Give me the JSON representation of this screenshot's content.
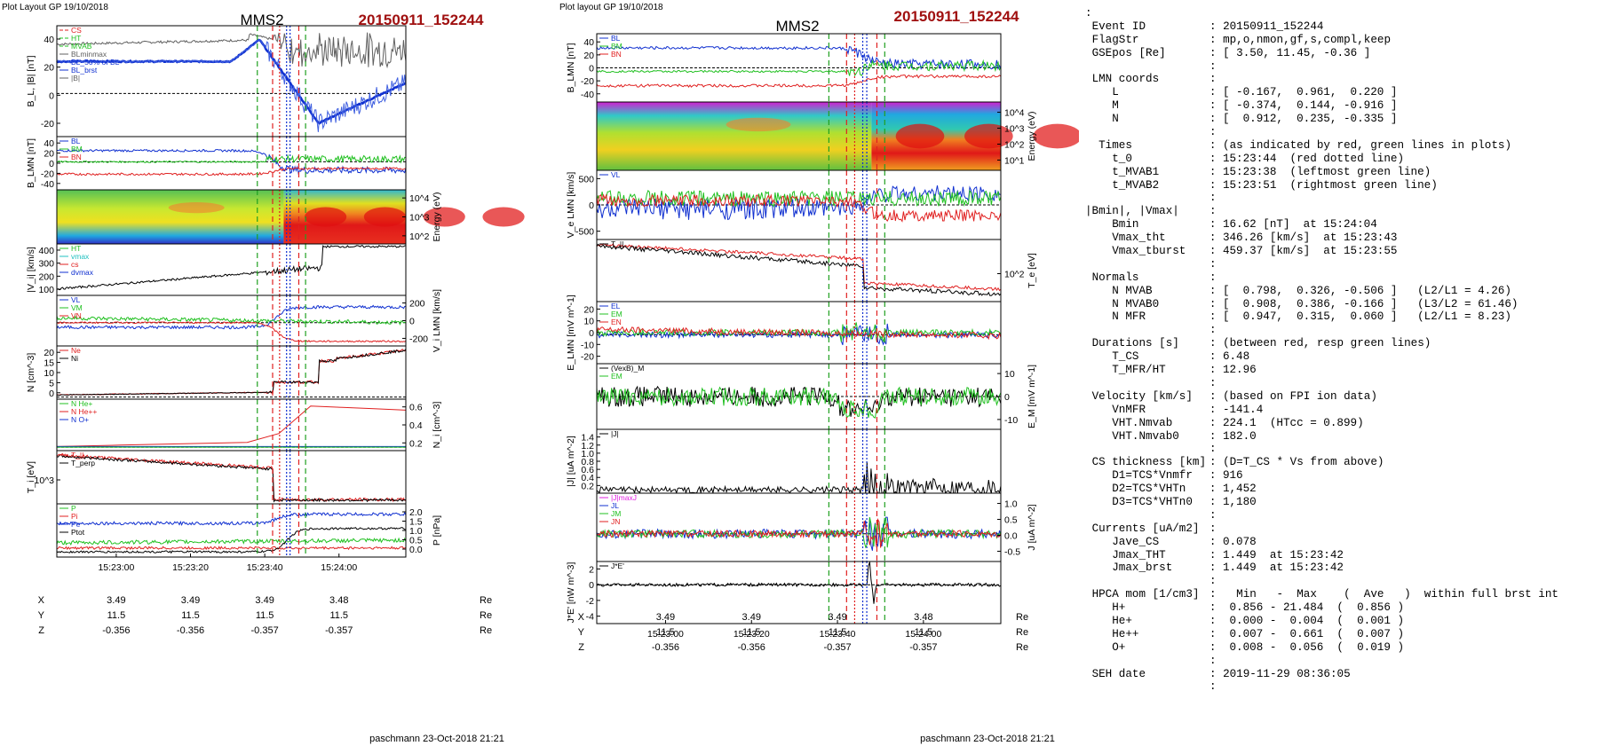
{
  "left_header": {
    "layout_label": "Plot Layout GP 19/10/2018",
    "spacecraft": "MMS2",
    "event": "20150911_152244"
  },
  "mid_header": {
    "layout_label": "Plot layout GP 19/10/2018",
    "spacecraft": "MMS2",
    "event": "20150911_152244"
  },
  "footer_left": "paschmann 23-Oct-2018 21:21",
  "footer_mid": "paschmann 23-Oct-2018 21:21",
  "colors": {
    "title_red": "#a01010",
    "bl": "#1030d0",
    "bm": "#20c020",
    "bn": "#e02020",
    "total": "#606060",
    "black": "#000000"
  },
  "chart_data": [
    {
      "type": "line",
      "id": "left-panels",
      "x_ticks": [
        "15:23:00",
        "15:23:20",
        "15:23:40",
        "15:24:00"
      ],
      "event_lines": {
        "red_dotted": "15:23:44",
        "green_left": "15:23:38",
        "green_right": "15:23:51"
      },
      "panels": [
        {
          "ylabel": "B_L, |B| [nT]",
          "ylim": [
            -35,
            55
          ],
          "yticks": [
            "40",
            "20",
            "0",
            "-20"
          ],
          "yticks_right": [],
          "ylabel_right": "",
          "legend": [
            "CS",
            "HT",
            "MVAB",
            "BLminmax",
            "BL_50% of BL",
            "BL_brst",
            "|B|"
          ],
          "legend_colors": [
            "#e02020",
            "#20c020",
            "#20c020",
            "#606060",
            "#1030d0",
            "#1030d0",
            "#606060"
          ],
          "legend_dashes": [
            "4,2",
            "4,2",
            "4,2",
            "",
            "3,2",
            "",
            ""
          ]
        },
        {
          "ylabel": "B_LMN [nT]",
          "ylim": [
            -50,
            45
          ],
          "yticks": [
            "40",
            "20",
            "0",
            "-20",
            "-40"
          ],
          "yticks_right": [],
          "ylabel_right": "",
          "legend": [
            "BL",
            "BM",
            "BN"
          ],
          "legend_colors": [
            "#1030d0",
            "#20c020",
            "#e02020"
          ],
          "legend_dashes": [
            "",
            "",
            ""
          ]
        },
        {
          "ylabel": "",
          "ylim": [
            0,
            1
          ],
          "yticks": [],
          "yticks_right": [
            "10^4",
            "10^3",
            "10^2"
          ],
          "ylabel_right": "Energy (eV)",
          "legend": [],
          "legend_colors": [],
          "legend_dashes": []
        },
        {
          "ylabel": "|V_i| [km/s]",
          "ylim": [
            60,
            460
          ],
          "yticks": [
            "400",
            "300",
            "200",
            "100"
          ],
          "yticks_right": [],
          "ylabel_right": "",
          "legend": [
            "HT",
            "vmax",
            "cs",
            "dvmax"
          ],
          "legend_colors": [
            "#20c020",
            "#20c0c0",
            "#e02020",
            "#1030d0"
          ],
          "legend_dashes": [
            "",
            "",
            "",
            ""
          ]
        },
        {
          "ylabel": "",
          "ylim": [
            -300,
            350
          ],
          "yticks": [],
          "yticks_right": [
            "200",
            "0",
            "-200"
          ],
          "ylabel_right": "V_i LMN [km/s]",
          "legend": [
            "VL",
            "VM",
            "VN"
          ],
          "legend_colors": [
            "#1030d0",
            "#20c020",
            "#e02020"
          ],
          "legend_dashes": [
            "",
            "",
            ""
          ]
        },
        {
          "ylabel": "N [cm^-3]",
          "ylim": [
            -1,
            24
          ],
          "yticks": [
            "20",
            "15",
            "10",
            "5",
            "0"
          ],
          "yticks_right": [],
          "ylabel_right": "",
          "legend": [
            "Ne",
            "Ni"
          ],
          "legend_colors": [
            "#e02020",
            "#000000"
          ],
          "legend_dashes": [
            "",
            ""
          ]
        },
        {
          "ylabel": "",
          "ylim": [
            -0.05,
            0.7
          ],
          "yticks": [],
          "yticks_right": [
            "0.6",
            "0.4",
            "0.2"
          ],
          "ylabel_right": "N_i [cm^-3]",
          "legend": [
            "N He+",
            "N He++",
            "N O+"
          ],
          "legend_colors": [
            "#20c020",
            "#e02020",
            "#1030d0"
          ],
          "legend_dashes": [
            "",
            "",
            ""
          ]
        },
        {
          "ylabel": "T_i [eV]",
          "ylim": [
            0,
            1
          ],
          "yticks": [
            "10^3"
          ],
          "yticks_right": [],
          "ylabel_right": "",
          "legend": [
            "T_||",
            "T_perp"
          ],
          "legend_colors": [
            "#e02020",
            "#000000"
          ],
          "legend_dashes": [
            "",
            ""
          ]
        },
        {
          "ylabel": "",
          "ylim": [
            0,
            2.05
          ],
          "yticks": [],
          "yticks_right": [
            "2.0",
            "1.5",
            "1.0",
            "0.5",
            "0.0"
          ],
          "ylabel_right": "P [nPa]",
          "legend": [
            "P",
            "Pi",
            "Pe",
            "Ptot"
          ],
          "legend_colors": [
            "#20c020",
            "#e02020",
            "#1030d0",
            "#000000"
          ],
          "legend_dashes": [
            "",
            "",
            "",
            ""
          ]
        }
      ]
    },
    {
      "type": "line",
      "id": "mid-panels",
      "x_ticks": [
        "15:23:00",
        "15:23:20",
        "15:23:40",
        "15:24:00"
      ],
      "panels": [
        {
          "ylabel": "B_LMN [nT]",
          "ylim": [
            -48,
            48
          ],
          "yticks": [
            "40",
            "20",
            "0",
            "-20",
            "-40"
          ],
          "yticks_right": [],
          "ylabel_right": "",
          "legend": [
            "BL",
            "BM",
            "BN"
          ],
          "legend_colors": [
            "#1030d0",
            "#20c020",
            "#e02020"
          ],
          "legend_dashes": [
            "",
            "",
            ""
          ]
        },
        {
          "ylabel": "",
          "ylim": [
            0,
            1
          ],
          "yticks": [],
          "yticks_right": [
            "10^4",
            "10^3",
            "10^2",
            "10^1"
          ],
          "ylabel_right": "Energy (eV)",
          "legend": [],
          "legend_colors": [],
          "legend_dashes": []
        },
        {
          "ylabel": "V_e LMN [km/s]",
          "ylim": [
            -650,
            650
          ],
          "yticks": [
            "500",
            "0",
            "-500"
          ],
          "yticks_right": [],
          "ylabel_right": "",
          "legend": [
            "VL"
          ],
          "legend_colors": [
            "#1030d0"
          ],
          "legend_dashes": [
            ""
          ]
        },
        {
          "ylabel": "",
          "ylim": [
            0,
            1
          ],
          "yticks": [],
          "yticks_right": [
            "10^2"
          ],
          "ylabel_right": "T_e [eV]",
          "legend": [
            "T_||"
          ],
          "legend_colors": [
            "#000000"
          ],
          "legend_dashes": [
            ""
          ]
        },
        {
          "ylabel": "E_LMN [mV m^-1]",
          "ylim": [
            -28,
            32
          ],
          "yticks": [
            "20",
            "10",
            "0",
            "-10",
            "-20"
          ],
          "yticks_right": [],
          "ylabel_right": "",
          "legend": [
            "EL",
            "EM",
            "EN"
          ],
          "legend_colors": [
            "#1030d0",
            "#20c020",
            "#e02020"
          ],
          "legend_dashes": [
            "",
            "",
            ""
          ]
        },
        {
          "ylabel": "",
          "ylim": [
            -16,
            16
          ],
          "yticks": [],
          "yticks_right": [
            "10",
            "0",
            "-10"
          ],
          "ylabel_right": "E_M [mV m^-1]",
          "legend": [
            "(VexB)_M",
            "EM"
          ],
          "legend_colors": [
            "#000000",
            "#20c020"
          ],
          "legend_dashes": [
            "",
            ""
          ]
        },
        {
          "ylabel": "|J| [uA m^-2]",
          "ylim": [
            0,
            1.5
          ],
          "yticks": [
            "1.4",
            "1.2",
            "1.0",
            "0.8",
            "0.6",
            "0.4",
            "0.2"
          ],
          "yticks_right": [],
          "ylabel_right": "",
          "legend": [
            "|J|"
          ],
          "legend_colors": [
            "#000000"
          ],
          "legend_dashes": [
            ""
          ]
        },
        {
          "ylabel": "",
          "ylim": [
            -0.75,
            1.1
          ],
          "yticks": [],
          "yticks_right": [
            "1.0",
            "0.5",
            "0.0",
            "-0.5"
          ],
          "ylabel_right": "J [uA m^-2]",
          "legend": [
            "|J|maxJ",
            "JL",
            "JM",
            "JN"
          ],
          "legend_colors": [
            "#e020e0",
            "#1030d0",
            "#20c020",
            "#e02020"
          ],
          "legend_dashes": [
            "",
            "",
            "",
            ""
          ]
        },
        {
          "ylabel": "J*E' [nW m^-3]",
          "ylim": [
            -5,
            3
          ],
          "yticks": [
            "2",
            "0",
            "-2",
            "-4"
          ],
          "yticks_right": [],
          "ylabel_right": "",
          "legend": [
            "J*E'"
          ],
          "legend_colors": [
            "#000000"
          ],
          "legend_dashes": [
            ""
          ]
        }
      ]
    }
  ],
  "position_table": [
    {
      "label": "X",
      "values": [
        "3.49",
        "3.49",
        "3.49",
        "3.48"
      ],
      "unit": "Re"
    },
    {
      "label": "Y",
      "values": [
        "11.5",
        "11.5",
        "11.5",
        "11.5"
      ],
      "unit": "Re"
    },
    {
      "label": "Z",
      "values": [
        "-0.356",
        "-0.356",
        "-0.357",
        "-0.357"
      ],
      "unit": "Re"
    }
  ],
  "info_lines": [
    [
      ":",
      " ",
      ""
    ],
    [
      " ",
      "Event ID",
      ": 20150911_152244"
    ],
    [
      " ",
      "FlagStr",
      ": mp,o,nmon,gf,s,compl,keep"
    ],
    [
      " ",
      "GSEpos [Re]",
      ": [ 3.50, 11.45, -0.36 ]"
    ],
    [
      " ",
      "",
      ":"
    ],
    [
      " ",
      "LMN coords",
      ":"
    ],
    [
      "    ",
      "L",
      ": [ -0.167,  0.961,  0.220 ]"
    ],
    [
      "    ",
      "M",
      ": [ -0.374,  0.144, -0.916 ]"
    ],
    [
      "    ",
      "N",
      ": [  0.912,  0.235, -0.335 ]"
    ],
    [
      " ",
      "",
      ":"
    ],
    [
      "  ",
      "Times",
      ": (as indicated by red, green lines in plots)"
    ],
    [
      "    ",
      "t_0",
      ": 15:23:44  (red dotted line)"
    ],
    [
      "    ",
      "t_MVAB1",
      ": 15:23:38  (leftmost green line)"
    ],
    [
      "    ",
      "t_MVAB2",
      ": 15:23:51  (rightmost green line)"
    ],
    [
      " ",
      "",
      ":"
    ],
    [
      "",
      "|Bmin|, |Vmax|",
      ":"
    ],
    [
      "    ",
      "Bmin",
      ": 16.62 [nT]  at 15:24:04"
    ],
    [
      "    ",
      "Vmax_tht",
      ": 346.26 [km/s]  at 15:23:43"
    ],
    [
      "    ",
      "Vmax_tburst",
      ": 459.37 [km/s]  at 15:23:55"
    ],
    [
      " ",
      "",
      ":"
    ],
    [
      " ",
      "Normals",
      ":"
    ],
    [
      "    ",
      "N MVAB",
      ": [  0.798,  0.326, -0.506 ]   (L2/L1 = 4.26)"
    ],
    [
      "    ",
      "N MVAB0",
      ": [  0.908,  0.386, -0.166 ]   (L3/L2 = 61.46)"
    ],
    [
      "    ",
      "N MFR",
      ": [  0.947,  0.315,  0.060 ]   (L2/L1 = 8.23)"
    ],
    [
      " ",
      "",
      ":"
    ],
    [
      " ",
      "Durations [s]",
      ": (between red, resp green lines)"
    ],
    [
      "    ",
      "T_CS",
      ": 6.48"
    ],
    [
      "    ",
      "T_MFR/HT",
      ": 12.96"
    ],
    [
      " ",
      "",
      ":"
    ],
    [
      " ",
      "Velocity [km/s]",
      ": (based on FPI ion data)"
    ],
    [
      "    ",
      "VnMFR",
      ": -141.4"
    ],
    [
      "    ",
      "VHT.Nmvab",
      ": 224.1  (HTcc = 0.899)"
    ],
    [
      "    ",
      "VHT.Nmvab0",
      ": 182.0"
    ],
    [
      " ",
      "",
      ":"
    ],
    [
      " ",
      "CS thickness [km]",
      ": (D=T_CS * Vs from above)"
    ],
    [
      "    ",
      "D1=TCS*Vnmfr",
      ": 916"
    ],
    [
      "    ",
      "D2=TCS*VHTn",
      ": 1,452"
    ],
    [
      "    ",
      "D3=TCS*VHTn0",
      ": 1,180"
    ],
    [
      " ",
      "",
      ":"
    ],
    [
      " ",
      "Currents [uA/m2]",
      ":"
    ],
    [
      "    ",
      "Jave_CS",
      ": 0.078"
    ],
    [
      "    ",
      "Jmax_THT",
      ": 1.449  at 15:23:42"
    ],
    [
      "    ",
      "Jmax_brst",
      ": 1.449  at 15:23:42"
    ],
    [
      " ",
      "",
      ":"
    ],
    [
      " ",
      "HPCA mom [1/cm3]",
      ":   Min   -  Max    (  Ave   )  within full brst int"
    ],
    [
      "    ",
      "H+",
      ":  0.856 - 21.484  (  0.856 )"
    ],
    [
      "    ",
      "He+",
      ":  0.000 -  0.004  (  0.001 )"
    ],
    [
      "    ",
      "He++",
      ":  0.007 -  0.661  (  0.007 )"
    ],
    [
      "    ",
      "O+",
      ":  0.008 -  0.056  (  0.019 )"
    ],
    [
      " ",
      "",
      ":"
    ],
    [
      " ",
      "SEH date",
      ": 2019-11-29 08:36:05"
    ],
    [
      " ",
      "",
      ":"
    ]
  ]
}
